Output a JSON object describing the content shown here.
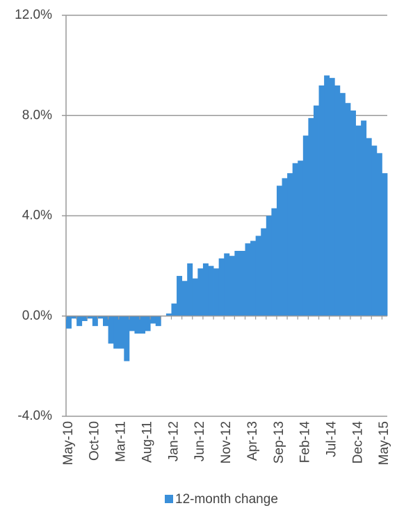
{
  "chart_data": {
    "type": "bar",
    "categories": [
      "May-10",
      null,
      null,
      null,
      null,
      "Oct-10",
      null,
      null,
      null,
      null,
      "Mar-11",
      null,
      null,
      null,
      null,
      "Aug-11",
      null,
      null,
      null,
      null,
      "Jan-12",
      null,
      null,
      null,
      null,
      "Jun-12",
      null,
      null,
      null,
      null,
      "Nov-12",
      null,
      null,
      null,
      null,
      "Apr-13",
      null,
      null,
      null,
      null,
      "Sep-13",
      null,
      null,
      null,
      null,
      "Feb-14",
      null,
      null,
      null,
      null,
      "Jul-14",
      null,
      null,
      null,
      null,
      "Dec-14",
      null,
      null,
      null,
      null,
      "May-15"
    ],
    "series": [
      {
        "name": "12-month change",
        "color": "#3a8fd9",
        "values": [
          -0.5,
          -0.1,
          -0.4,
          -0.2,
          -0.1,
          -0.4,
          -0.1,
          -0.4,
          -1.1,
          -1.3,
          -1.3,
          -1.8,
          -0.6,
          -0.7,
          -0.7,
          -0.6,
          -0.3,
          -0.4,
          0.0,
          0.1,
          0.5,
          1.6,
          1.4,
          2.1,
          1.5,
          1.9,
          2.1,
          2.0,
          1.9,
          2.3,
          2.5,
          2.4,
          2.6,
          2.6,
          2.9,
          3.0,
          3.2,
          3.5,
          4.0,
          4.3,
          5.2,
          5.5,
          5.7,
          6.1,
          6.2,
          7.2,
          7.9,
          8.4,
          9.2,
          9.6,
          9.5,
          9.2,
          8.9,
          8.5,
          8.2,
          7.6,
          7.8,
          7.1,
          6.8,
          6.5,
          5.7
        ]
      }
    ],
    "ylim": [
      -4,
      12
    ],
    "yticks": [
      {
        "value": -4,
        "label": "-4.0%"
      },
      {
        "value": 0,
        "label": "0.0%"
      },
      {
        "value": 4,
        "label": "4.0%"
      },
      {
        "value": 8,
        "label": "8.0%"
      },
      {
        "value": 12,
        "label": "12.0%"
      }
    ],
    "grid": true,
    "legend": "bottom"
  }
}
